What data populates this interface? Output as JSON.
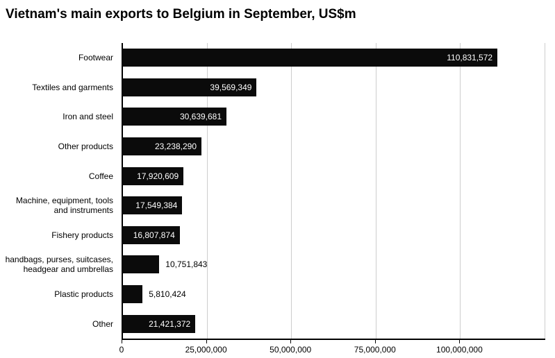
{
  "chart_data": {
    "type": "bar",
    "orientation": "horizontal",
    "title": "Vietnam's main exports to Belgium in September, US$m",
    "categories": [
      "Footwear",
      "Textiles and garments",
      "Iron and steel",
      "Other products",
      "Coffee",
      "Machine, equipment, tools and instruments",
      "Fishery products",
      "handbags, purses, suitcases, headgear and umbrellas",
      "Plastic products",
      "Other"
    ],
    "values": [
      110831572,
      39569349,
      30639681,
      23238290,
      17920609,
      17549384,
      16807874,
      10751843,
      5810424,
      21421372
    ],
    "value_labels": [
      "110,831,572",
      "39,569,349",
      "30,639,681",
      "23,238,290",
      "17,920,609",
      "17,549,384",
      "16,807,874",
      "10,751,843",
      "5,810,424",
      "21,421,372"
    ],
    "xlabel": "",
    "ylabel": "",
    "xlim": [
      0,
      125000000
    ],
    "x_tick_values": [
      0,
      25000000,
      50000000,
      75000000,
      100000000
    ],
    "x_tick_labels": [
      "0",
      "25,000,000",
      "50,000,000",
      "75,000,000",
      "100,000,000"
    ],
    "gridline_values": [
      25000000,
      50000000,
      75000000,
      100000000,
      125000000
    ],
    "bar_color": "#0b0b0b",
    "gridline_color": "#cccccc",
    "axis_color": "#000000",
    "grid": "vertical",
    "legend": "none"
  }
}
